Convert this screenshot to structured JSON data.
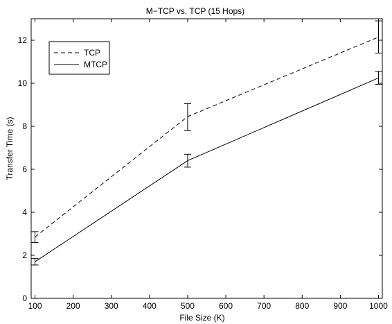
{
  "chart_data": {
    "type": "line",
    "title": "M−TCP vs. TCP (15 Hops)",
    "xlabel": "File Size (K)",
    "ylabel": "Transfer Time (s)",
    "xlim": [
      90,
      1010
    ],
    "ylim": [
      0,
      13
    ],
    "xticks": [
      100,
      200,
      300,
      400,
      500,
      600,
      700,
      800,
      900,
      1000
    ],
    "yticks": [
      0,
      2,
      4,
      6,
      8,
      10,
      12
    ],
    "grid": false,
    "legend_position": "top-left",
    "series": [
      {
        "name": "TCP",
        "style": "dashed",
        "color": "#000000",
        "x": [
          100,
          500,
          1000
        ],
        "y": [
          2.85,
          8.45,
          12.15
        ],
        "err_low": [
          2.6,
          7.8,
          11.4
        ],
        "err_high": [
          3.1,
          9.05,
          12.9
        ]
      },
      {
        "name": "MTCP",
        "style": "solid",
        "color": "#000000",
        "x": [
          100,
          500,
          1000
        ],
        "y": [
          1.7,
          6.4,
          10.25
        ],
        "err_low": [
          1.55,
          6.1,
          9.95
        ],
        "err_high": [
          1.85,
          6.7,
          10.55
        ]
      }
    ]
  }
}
